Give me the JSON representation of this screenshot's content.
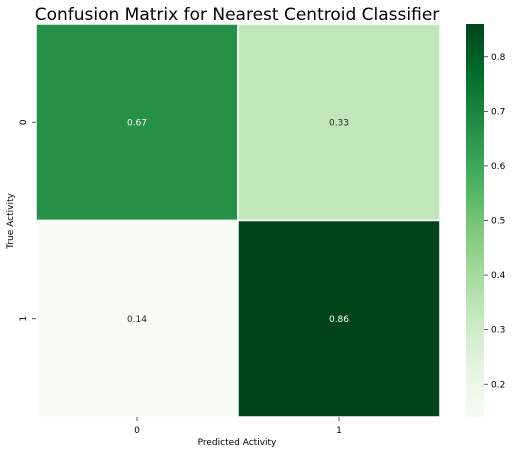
{
  "chart_data": {
    "type": "heatmap",
    "title": "Confusion Matrix for Nearest Centroid Classifier",
    "xlabel": "Predicted Activity",
    "ylabel": "True Activity",
    "x_categories": [
      "0",
      "1"
    ],
    "y_categories": [
      "0",
      "1"
    ],
    "values": [
      [
        0.67,
        0.33
      ],
      [
        0.14,
        0.86
      ]
    ],
    "annotations": [
      [
        "0.67",
        "0.33"
      ],
      [
        "0.14",
        "0.86"
      ]
    ],
    "colormap": "Greens",
    "color_range": [
      0.14,
      0.86
    ],
    "colorbar_ticks": [
      "0.2",
      "0.3",
      "0.4",
      "0.5",
      "0.6",
      "0.7",
      "0.8"
    ],
    "colorbar_tick_values": [
      0.2,
      0.3,
      0.4,
      0.5,
      0.6,
      0.7,
      0.8
    ],
    "colors": {
      "low": "#f7fcf5",
      "high": "#00441b"
    },
    "grid": false,
    "legend": "colorbar-right"
  }
}
